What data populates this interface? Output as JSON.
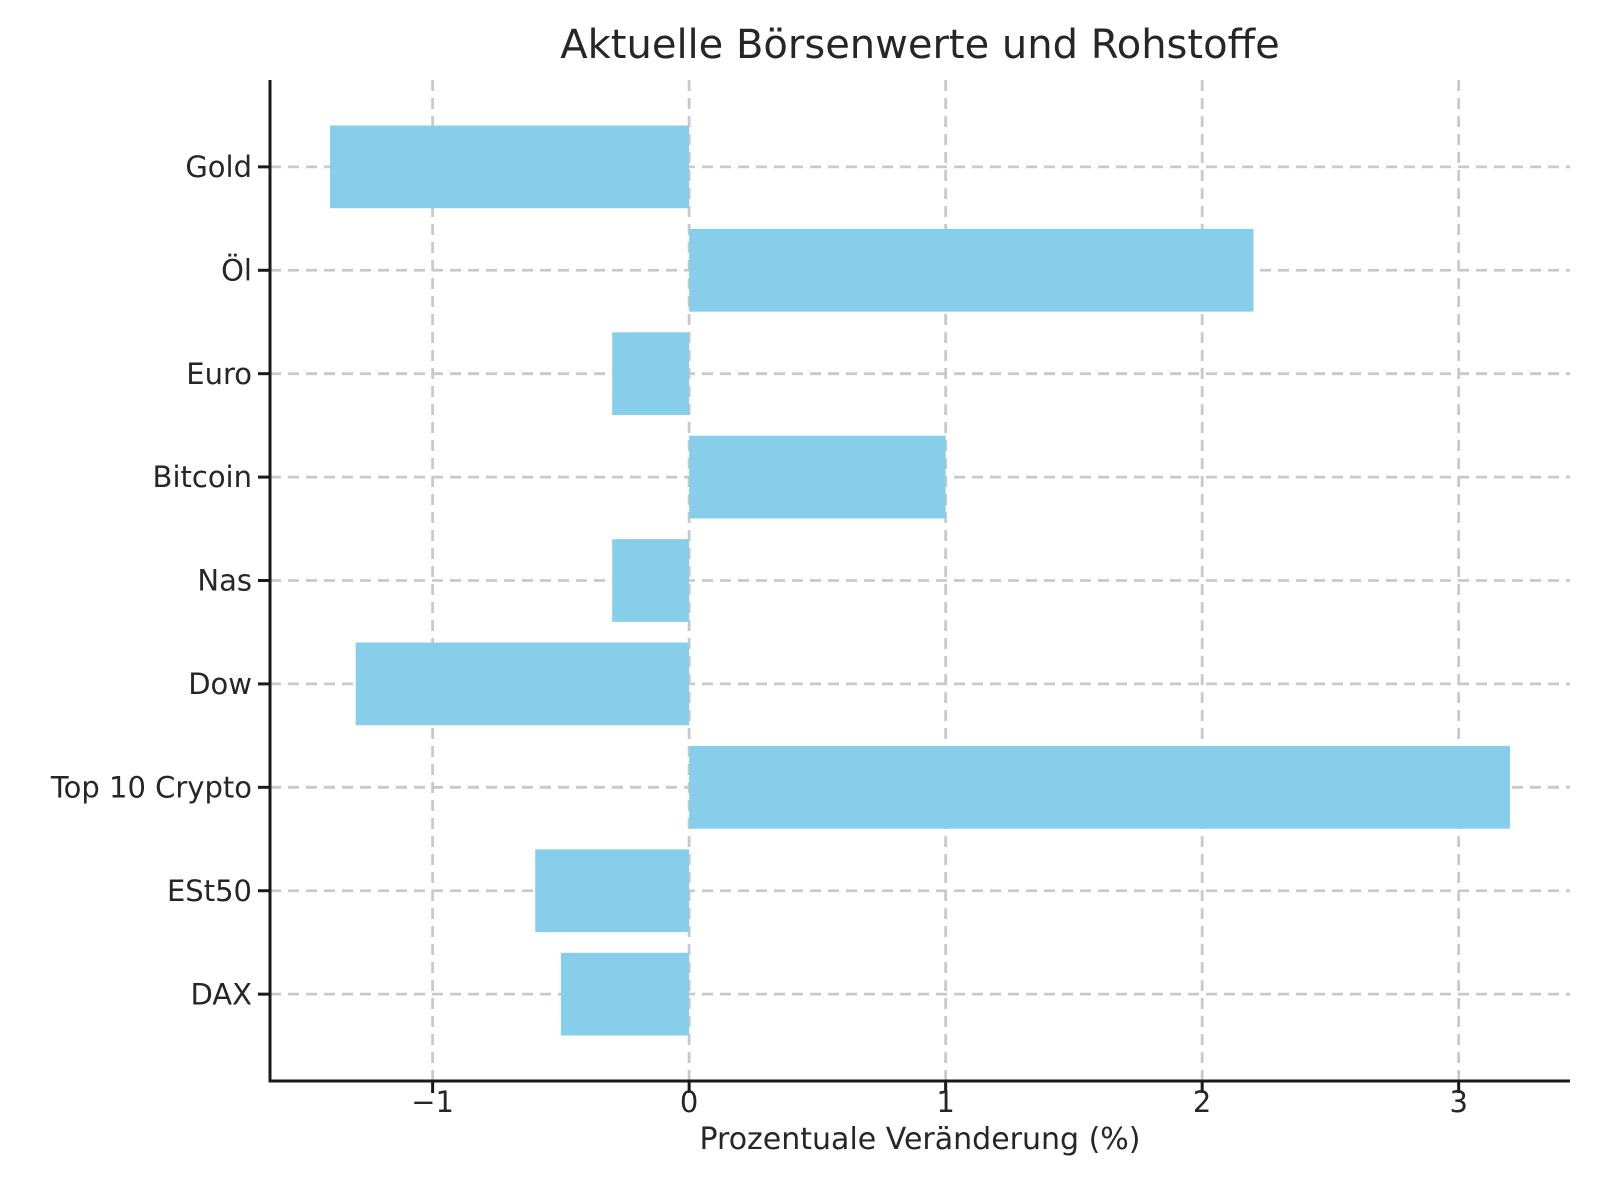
{
  "title": "Aktuelle Börsenwerte und Rohstoffe",
  "chart_data": {
    "type": "bar",
    "orientation": "horizontal",
    "title": "Aktuelle Börsenwerte und Rohstoffe",
    "xlabel": "Prozentuale Veränderung (%)",
    "ylabel": "",
    "categories": [
      "Gold",
      "Öl",
      "Euro",
      "Bitcoin",
      "Nas",
      "Dow",
      "Top 10 Crypto",
      "ESt50",
      "DAX"
    ],
    "values": [
      -1.4,
      2.2,
      -0.3,
      1.0,
      -0.3,
      -1.3,
      3.2,
      -0.6,
      -0.5
    ],
    "xticks": [
      -1,
      0,
      1,
      2,
      3
    ],
    "xtick_labels": [
      "−1",
      "0",
      "1",
      "2",
      "3"
    ],
    "xlim": [
      -1.634,
      3.434
    ],
    "grid": true,
    "grid_style": "dashed",
    "legend": "none",
    "bar_color": "#87CEEB",
    "grid_color": "#c9c9c9",
    "axis_color": "#1a1a1a",
    "text_color": "#262626",
    "background": "#ffffff"
  }
}
